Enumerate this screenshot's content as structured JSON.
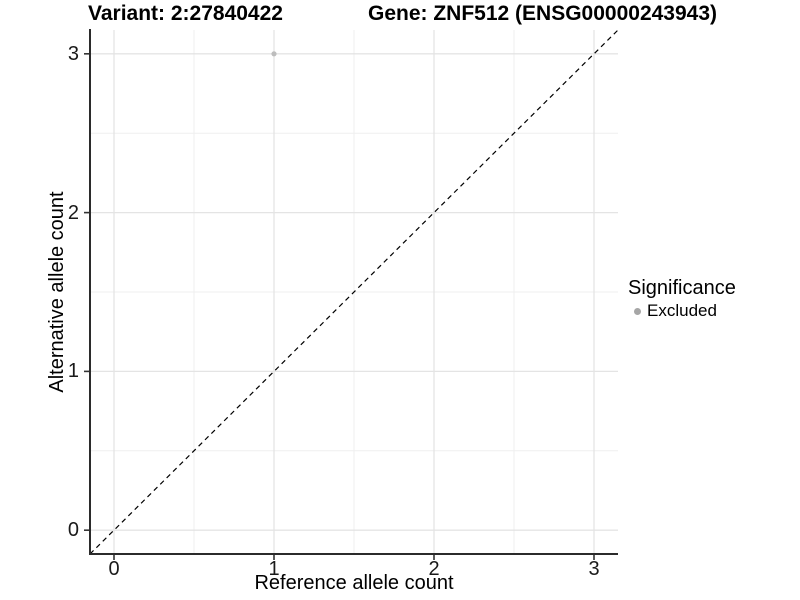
{
  "chart_data": {
    "type": "scatter",
    "title_left": "Variant: 2:27840422",
    "title_right": "Gene: ZNF512 (ENSG00000243943)",
    "xlabel": "Reference allele count",
    "ylabel": "Alternative allele count",
    "xlim": [
      -0.15,
      3.15
    ],
    "ylim": [
      -0.15,
      3.15
    ],
    "xticks": [
      0,
      1,
      2,
      3
    ],
    "yticks": [
      0,
      1,
      2,
      3
    ],
    "x_minor_gridlines": [
      0.5,
      1.5,
      2.5
    ],
    "y_minor_gridlines": [
      0.5,
      1.5,
      2.5
    ],
    "grid": "major and minor, light grey on white panel",
    "reference_line": {
      "type": "identity y=x",
      "style": "dashed",
      "color": "#000000"
    },
    "series": [
      {
        "name": "Excluded",
        "color": "#bdbdbd",
        "points": [
          {
            "x": 1,
            "y": 3
          }
        ]
      }
    ],
    "legend": {
      "title": "Significance",
      "position": "right",
      "items": [
        {
          "label": "Excluded",
          "color": "#a6a6a6"
        }
      ]
    }
  },
  "style": {
    "grid_major_color": "#e4e4e4",
    "grid_minor_color": "#efefef",
    "axis_line_color": "#2b2b2b",
    "tick_color": "#333333",
    "tick_label_color": "#1a1a1a",
    "reference_line_color": "#000000",
    "panel_background": "#ffffff"
  }
}
